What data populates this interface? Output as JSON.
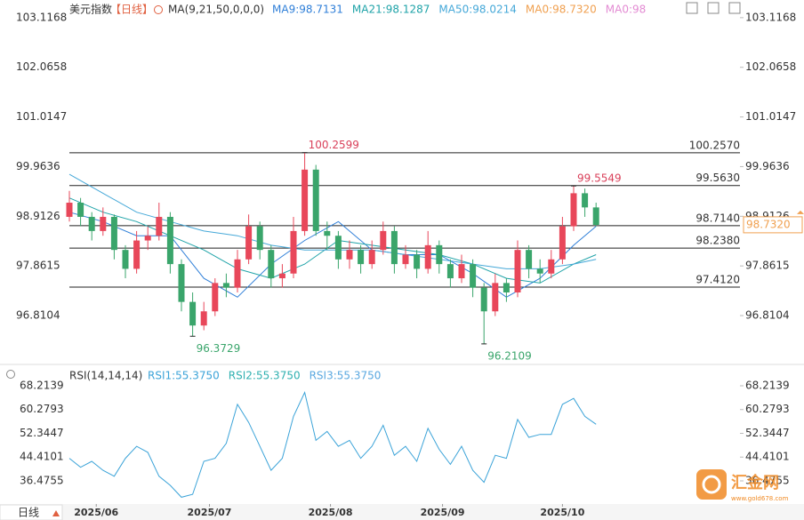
{
  "chart_data": {
    "type": "candlestick",
    "title": "美元指数",
    "period": "【日线】",
    "ma_params": "MA(9,21,50,0,0,0)",
    "up_color": "#e8475a",
    "down_color": "#3aa56b",
    "candles": [
      [
        98.9,
        99.45,
        98.8,
        99.2
      ],
      [
        99.2,
        99.3,
        98.7,
        98.9
      ],
      [
        98.9,
        99.0,
        98.4,
        98.6
      ],
      [
        98.6,
        99.1,
        98.5,
        98.9
      ],
      [
        98.9,
        98.95,
        98.0,
        98.2
      ],
      [
        98.2,
        98.3,
        97.6,
        97.8
      ],
      [
        97.8,
        98.6,
        97.7,
        98.4
      ],
      [
        98.4,
        98.7,
        98.2,
        98.5
      ],
      [
        98.5,
        99.2,
        98.4,
        98.9
      ],
      [
        98.9,
        99.0,
        97.7,
        97.9
      ],
      [
        97.9,
        98.0,
        96.9,
        97.1
      ],
      [
        97.1,
        97.3,
        96.3729,
        96.6
      ],
      [
        96.6,
        97.1,
        96.5,
        96.9
      ],
      [
        96.9,
        97.6,
        96.8,
        97.5
      ],
      [
        97.5,
        97.7,
        97.2,
        97.4
      ],
      [
        97.4,
        98.2,
        97.3,
        98.0
      ],
      [
        98.0,
        98.95,
        97.9,
        98.7
      ],
      [
        98.7,
        98.8,
        98.0,
        98.2
      ],
      [
        98.2,
        98.3,
        97.4,
        97.6
      ],
      [
        97.6,
        97.9,
        97.4,
        97.7
      ],
      [
        97.7,
        98.9,
        97.6,
        98.6
      ],
      [
        98.6,
        100.2599,
        98.5,
        99.9
      ],
      [
        99.9,
        100.0,
        98.5,
        98.6
      ],
      [
        98.6,
        98.8,
        98.2,
        98.5
      ],
      [
        98.5,
        98.6,
        97.8,
        98.0
      ],
      [
        98.0,
        98.4,
        97.8,
        98.2
      ],
      [
        98.2,
        98.3,
        97.7,
        97.9
      ],
      [
        97.9,
        98.4,
        97.8,
        98.2
      ],
      [
        98.2,
        98.8,
        98.1,
        98.6
      ],
      [
        98.6,
        98.7,
        97.7,
        97.9
      ],
      [
        97.9,
        98.3,
        97.8,
        98.1
      ],
      [
        98.1,
        98.2,
        97.6,
        97.8
      ],
      [
        97.8,
        98.6,
        97.7,
        98.3
      ],
      [
        98.3,
        98.4,
        97.7,
        97.9
      ],
      [
        97.9,
        98.0,
        97.4,
        97.6
      ],
      [
        97.6,
        98.1,
        97.5,
        97.9
      ],
      [
        97.9,
        98.0,
        97.2,
        97.4
      ],
      [
        97.4,
        97.5,
        96.2109,
        96.9
      ],
      [
        96.9,
        97.7,
        96.8,
        97.5
      ],
      [
        97.5,
        97.6,
        97.1,
        97.3
      ],
      [
        97.3,
        98.4,
        97.2,
        98.2
      ],
      [
        98.2,
        98.3,
        97.6,
        97.8
      ],
      [
        97.8,
        98.0,
        97.5,
        97.7
      ],
      [
        97.7,
        98.2,
        97.6,
        98.0
      ],
      [
        98.0,
        98.9,
        97.9,
        98.7
      ],
      [
        98.7,
        99.5549,
        98.6,
        99.4
      ],
      [
        99.4,
        99.5,
        98.9,
        99.1
      ],
      [
        99.1,
        99.2,
        98.7,
        98.73
      ]
    ],
    "ma_x": [
      0,
      3,
      6,
      9,
      12,
      15,
      18,
      21,
      24,
      27,
      30,
      33,
      36,
      39,
      42,
      45,
      47
    ],
    "ma_series": [
      {
        "name": "MA9:98.7131",
        "color": "#2f7fd8",
        "values": [
          99.0,
          98.8,
          98.5,
          98.5,
          97.6,
          97.2,
          97.9,
          98.4,
          98.8,
          98.2,
          98.1,
          98.1,
          97.7,
          97.2,
          97.6,
          98.3,
          98.7
        ]
      },
      {
        "name": "MA21:98.1287",
        "color": "#1fa3a8",
        "values": [
          99.3,
          99.0,
          98.8,
          98.5,
          98.2,
          97.8,
          97.6,
          97.9,
          98.4,
          98.3,
          98.2,
          98.1,
          97.9,
          97.6,
          97.5,
          97.9,
          98.1
        ]
      },
      {
        "name": "MA50:98.0214",
        "color": "#45a8d8",
        "values": [
          99.8,
          99.4,
          99.0,
          98.8,
          98.6,
          98.5,
          98.3,
          98.2,
          98.2,
          98.2,
          98.1,
          98.0,
          97.9,
          97.8,
          97.8,
          97.9,
          98.0
        ]
      }
    ],
    "ma_legend_extra": [
      {
        "name": "MA0:98.7320",
        "color": "#f0a050"
      },
      {
        "name": "MA0:98",
        "color": "#e38bd3"
      }
    ],
    "ylim": [
      95.87,
      103.34
    ],
    "yticks": [
      103.1168,
      102.0658,
      101.0147,
      99.9636,
      98.9126,
      97.8615,
      96.8104
    ],
    "levels": [
      {
        "value": 100.257,
        "label": "100.2570"
      },
      {
        "value": 99.563,
        "label": "99.5630"
      },
      {
        "value": 98.714,
        "label": "98.7140"
      },
      {
        "value": 98.238,
        "label": "98.2380"
      },
      {
        "value": 97.412,
        "label": "97.4120"
      }
    ],
    "current_price": {
      "value": 98.732,
      "label": "98.7320"
    },
    "annotations": [
      {
        "index": 21,
        "value": 100.2599,
        "color": "#d9405a"
      },
      {
        "index": 45,
        "value": 99.5549,
        "color": "#d9405a"
      },
      {
        "index": 11,
        "value": 96.3729,
        "color": "#3aa56b"
      },
      {
        "index": 37,
        "value": 96.2109,
        "color": "#3aa56b"
      }
    ],
    "xticks": [
      {
        "value": 2.4,
        "label": "2025/06"
      },
      {
        "value": 12.5,
        "label": "2025/07"
      },
      {
        "value": 23.3,
        "label": "2025/08"
      },
      {
        "value": 33.3,
        "label": "2025/09"
      },
      {
        "value": 44.0,
        "label": "2025/10"
      }
    ],
    "period_button": "日线",
    "rsi": {
      "params": "RSI(14,14,14)",
      "series": [
        {
          "name": "RSI1:55.3750",
          "color": "#3ba3d8",
          "values": [
            44,
            41,
            43,
            40,
            38,
            44,
            48,
            46,
            38,
            35,
            31,
            32,
            43,
            44,
            49,
            62,
            56,
            48,
            40,
            44,
            58,
            66,
            50,
            53,
            48,
            50,
            44,
            48,
            55,
            45,
            48,
            43,
            54,
            47,
            42,
            48,
            40,
            36,
            45,
            44,
            57,
            51,
            52,
            52,
            62,
            64,
            58,
            55.375
          ]
        }
      ],
      "legend_extra": [
        {
          "name": "RSI2:55.3750",
          "color": "#2fb0b0"
        },
        {
          "name": "RSI3:55.3750",
          "color": "#5aa8e0"
        }
      ],
      "ylim": [
        29.35,
        72.96
      ],
      "yticks": [
        68.2139,
        60.2793,
        52.3447,
        44.4101,
        36.4755
      ]
    },
    "watermark": {
      "name": "汇金网",
      "url": "www.gold678.com"
    }
  }
}
